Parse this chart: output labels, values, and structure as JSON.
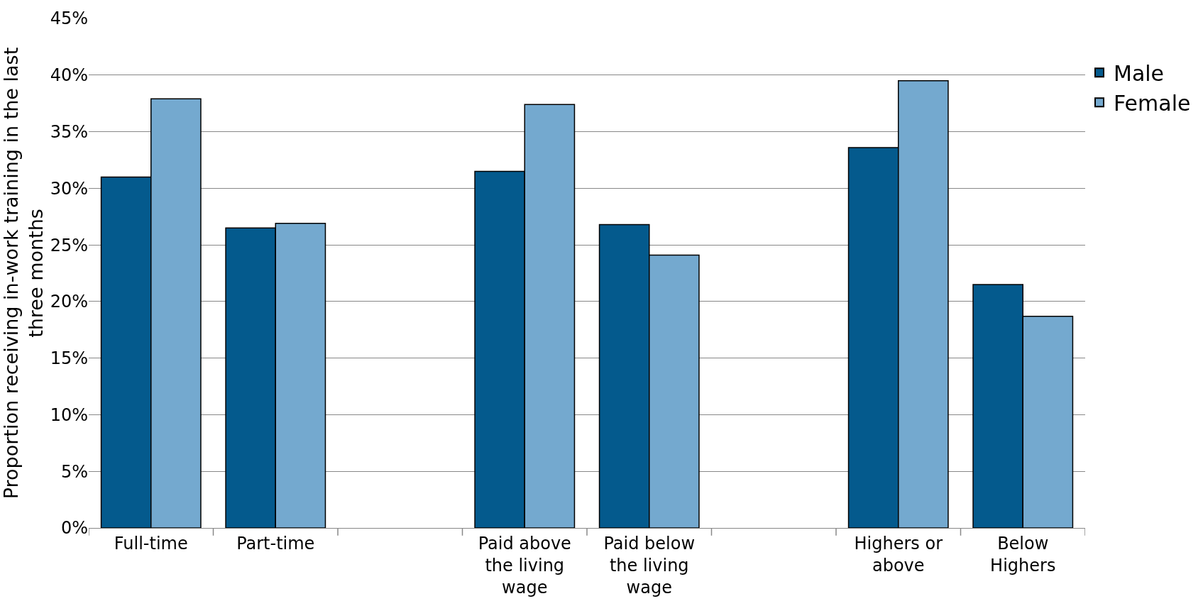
{
  "chart_data": {
    "type": "bar",
    "ylabel": "Proportion receiving in-work training in the last three months",
    "categories": [
      "Full-time",
      "Part-time",
      null,
      "Paid above the living wage",
      "Paid below the living wage",
      null,
      "Highers or above",
      "Below Highers"
    ],
    "series": [
      {
        "name": "Male",
        "color": "#045a8d",
        "values": [
          31.0,
          26.5,
          null,
          31.5,
          26.8,
          null,
          33.6,
          21.5
        ]
      },
      {
        "name": "Female",
        "color": "#74a9cf",
        "values": [
          37.9,
          26.9,
          null,
          37.4,
          24.1,
          null,
          39.5,
          18.7
        ]
      }
    ],
    "ylim": [
      0,
      45
    ],
    "yticks": [
      {
        "value": 0,
        "label": "0%"
      },
      {
        "value": 5,
        "label": "5%"
      },
      {
        "value": 10,
        "label": "10%"
      },
      {
        "value": 15,
        "label": "15%"
      },
      {
        "value": 20,
        "label": "20%"
      },
      {
        "value": 25,
        "label": "25%"
      },
      {
        "value": 30,
        "label": "30%"
      },
      {
        "value": 35,
        "label": "35%"
      },
      {
        "value": 40,
        "label": "40%"
      },
      {
        "value": 45,
        "label": "45%"
      }
    ],
    "grid": "y",
    "legend": "top right"
  }
}
